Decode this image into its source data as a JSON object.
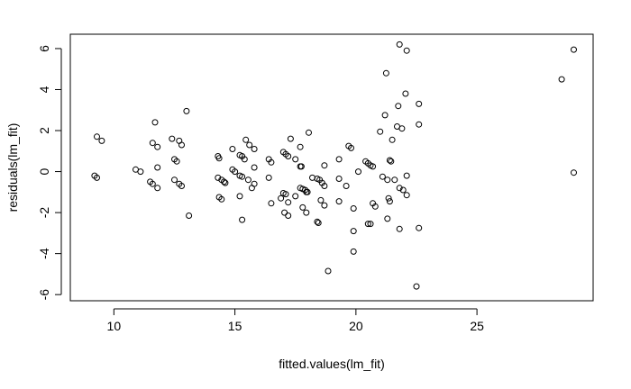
{
  "chart_data": {
    "type": "scatter",
    "xlabel": "fitted.values(lm_fit)",
    "ylabel": "residuals(lm_fit)",
    "xlim": [
      8.2,
      29.8
    ],
    "ylim": [
      -6.3,
      6.7
    ],
    "xticks": [
      10,
      15,
      20,
      25
    ],
    "yticks": [
      -6,
      -4,
      -2,
      0,
      2,
      4,
      6
    ],
    "xtick_labels": [
      "10",
      "15",
      "20",
      "25"
    ],
    "ytick_labels": [
      "-6",
      "-4",
      "-2",
      "0",
      "2",
      "4",
      "6"
    ],
    "grid": false,
    "legend": "none",
    "marker": "open-circle",
    "points": [
      [
        9.2,
        -0.2
      ],
      [
        9.3,
        -0.3
      ],
      [
        9.3,
        1.7
      ],
      [
        9.5,
        1.5
      ],
      [
        10.9,
        0.1
      ],
      [
        11.1,
        0.0
      ],
      [
        11.5,
        -0.5
      ],
      [
        11.6,
        -0.6
      ],
      [
        11.7,
        2.4
      ],
      [
        11.6,
        1.4
      ],
      [
        11.8,
        1.2
      ],
      [
        11.8,
        0.2
      ],
      [
        11.8,
        -0.8
      ],
      [
        12.4,
        1.6
      ],
      [
        12.5,
        0.6
      ],
      [
        12.6,
        0.5
      ],
      [
        12.5,
        -0.4
      ],
      [
        12.7,
        -0.6
      ],
      [
        12.8,
        -0.7
      ],
      [
        12.7,
        1.5
      ],
      [
        12.8,
        1.3
      ],
      [
        13.0,
        2.95
      ],
      [
        13.1,
        -2.15
      ],
      [
        14.3,
        0.75
      ],
      [
        14.35,
        0.65
      ],
      [
        14.3,
        -0.3
      ],
      [
        14.45,
        -0.4
      ],
      [
        14.55,
        -0.5
      ],
      [
        14.6,
        -0.55
      ],
      [
        14.35,
        -1.25
      ],
      [
        14.45,
        -1.35
      ],
      [
        14.9,
        1.1
      ],
      [
        14.9,
        0.1
      ],
      [
        15.0,
        0.0
      ],
      [
        15.2,
        0.8
      ],
      [
        15.3,
        0.75
      ],
      [
        15.2,
        -0.2
      ],
      [
        15.3,
        -0.25
      ],
      [
        15.4,
        0.6
      ],
      [
        15.45,
        1.55
      ],
      [
        15.55,
        -0.4
      ],
      [
        15.2,
        -1.2
      ],
      [
        15.3,
        -2.35
      ],
      [
        15.6,
        1.3
      ],
      [
        15.7,
        -0.8
      ],
      [
        15.8,
        1.1
      ],
      [
        15.8,
        0.2
      ],
      [
        15.8,
        -0.6
      ],
      [
        16.4,
        0.6
      ],
      [
        16.5,
        0.45
      ],
      [
        16.4,
        -0.3
      ],
      [
        16.5,
        -1.55
      ],
      [
        16.9,
        -1.3
      ],
      [
        17.0,
        0.95
      ],
      [
        17.1,
        0.85
      ],
      [
        17.0,
        -1.05
      ],
      [
        17.1,
        -1.1
      ],
      [
        17.2,
        0.75
      ],
      [
        17.3,
        1.6
      ],
      [
        17.2,
        -1.5
      ],
      [
        17.05,
        -2.0
      ],
      [
        17.2,
        -2.15
      ],
      [
        17.5,
        0.6
      ],
      [
        17.5,
        -1.2
      ],
      [
        17.7,
        1.2
      ],
      [
        17.7,
        0.25
      ],
      [
        17.75,
        0.25
      ],
      [
        17.7,
        -0.8
      ],
      [
        17.8,
        -0.85
      ],
      [
        17.8,
        -1.75
      ],
      [
        17.9,
        -0.9
      ],
      [
        17.95,
        -1.0
      ],
      [
        18.0,
        -1.0
      ],
      [
        17.95,
        -2.0
      ],
      [
        18.05,
        1.9
      ],
      [
        18.2,
        -0.3
      ],
      [
        18.4,
        -0.35
      ],
      [
        18.5,
        -0.4
      ],
      [
        18.6,
        -0.55
      ],
      [
        18.7,
        -0.7
      ],
      [
        18.55,
        -1.4
      ],
      [
        18.7,
        -1.65
      ],
      [
        18.4,
        -2.45
      ],
      [
        18.45,
        -2.5
      ],
      [
        18.7,
        0.3
      ],
      [
        18.85,
        -4.85
      ],
      [
        19.3,
        0.6
      ],
      [
        19.3,
        -0.35
      ],
      [
        19.3,
        -1.45
      ],
      [
        19.6,
        -0.7
      ],
      [
        19.7,
        1.25
      ],
      [
        19.8,
        1.15
      ],
      [
        19.9,
        -1.8
      ],
      [
        19.9,
        -2.9
      ],
      [
        19.9,
        -3.9
      ],
      [
        20.1,
        0.0
      ],
      [
        20.4,
        0.5
      ],
      [
        20.5,
        0.4
      ],
      [
        20.6,
        0.3
      ],
      [
        20.7,
        0.25
      ],
      [
        20.7,
        -1.55
      ],
      [
        20.8,
        -1.7
      ],
      [
        20.5,
        -2.55
      ],
      [
        20.6,
        -2.55
      ],
      [
        21.0,
        1.95
      ],
      [
        21.1,
        -0.25
      ],
      [
        21.2,
        2.75
      ],
      [
        21.25,
        4.8
      ],
      [
        21.3,
        -0.4
      ],
      [
        21.3,
        -2.3
      ],
      [
        21.35,
        -1.3
      ],
      [
        21.4,
        -1.45
      ],
      [
        21.4,
        0.55
      ],
      [
        21.45,
        0.5
      ],
      [
        21.5,
        1.55
      ],
      [
        21.6,
        -0.4
      ],
      [
        21.7,
        2.2
      ],
      [
        21.75,
        3.2
      ],
      [
        21.8,
        6.2
      ],
      [
        21.8,
        -0.8
      ],
      [
        21.8,
        -2.8
      ],
      [
        21.9,
        2.1
      ],
      [
        21.95,
        -0.9
      ],
      [
        22.05,
        3.8
      ],
      [
        22.1,
        5.9
      ],
      [
        22.1,
        -0.2
      ],
      [
        22.1,
        -1.15
      ],
      [
        22.5,
        -5.6
      ],
      [
        22.6,
        3.3
      ],
      [
        22.6,
        2.3
      ],
      [
        22.6,
        -2.75
      ],
      [
        28.5,
        4.5
      ],
      [
        29.0,
        5.95
      ],
      [
        29.0,
        -0.05
      ]
    ]
  }
}
